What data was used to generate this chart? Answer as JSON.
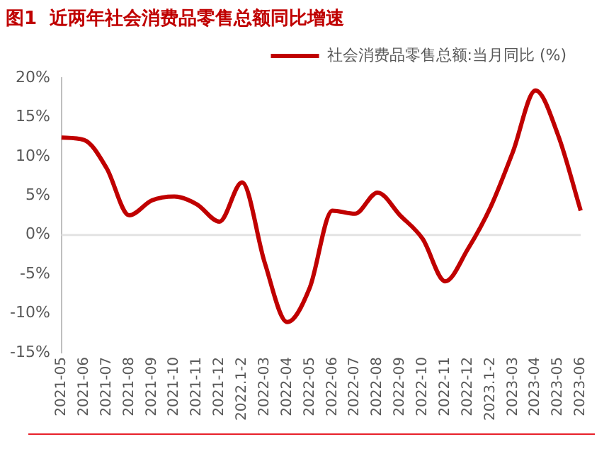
{
  "chart_data": {
    "type": "line",
    "title": "图1  近两年社会消费品零售总额同比增速",
    "categories": [
      "2021-05",
      "2021-06",
      "2021-07",
      "2021-08",
      "2021-09",
      "2021-10",
      "2021-11",
      "2021-12",
      "2022.1-2",
      "2022-03",
      "2022-04",
      "2022-05",
      "2022-06",
      "2022-07",
      "2022-08",
      "2022-09",
      "2022-10",
      "2022-11",
      "2022-12",
      "2023.1-2",
      "2023-03",
      "2023-04",
      "2023-05",
      "2023-06"
    ],
    "series": [
      {
        "name": "社会消费品零售总额:当月同比 (%)",
        "color": "#c00000",
        "values": [
          12.4,
          12.1,
          8.5,
          2.5,
          4.4,
          4.9,
          3.9,
          1.7,
          6.7,
          -3.5,
          -11.1,
          -6.7,
          3.1,
          2.7,
          5.4,
          2.5,
          -0.5,
          -5.9,
          -1.8,
          3.5,
          10.6,
          18.4,
          12.7,
          3.1
        ]
      }
    ],
    "ylim": [
      -15,
      20
    ],
    "yticks": [
      {
        "value": -15,
        "label": "-15%"
      },
      {
        "value": -10,
        "label": "-10%"
      },
      {
        "value": -5,
        "label": "-5%"
      },
      {
        "value": 0,
        "label": "0%"
      },
      {
        "value": 5,
        "label": "5%"
      },
      {
        "value": 10,
        "label": "10%"
      },
      {
        "value": 15,
        "label": "15%"
      },
      {
        "value": 20,
        "label": "20%"
      }
    ],
    "ref_lines": [
      {
        "axis": "y",
        "value": 0,
        "color": "#e3e3e3"
      }
    ],
    "grid": false,
    "legend": "top right",
    "marker": "none",
    "line_style": "solid"
  }
}
